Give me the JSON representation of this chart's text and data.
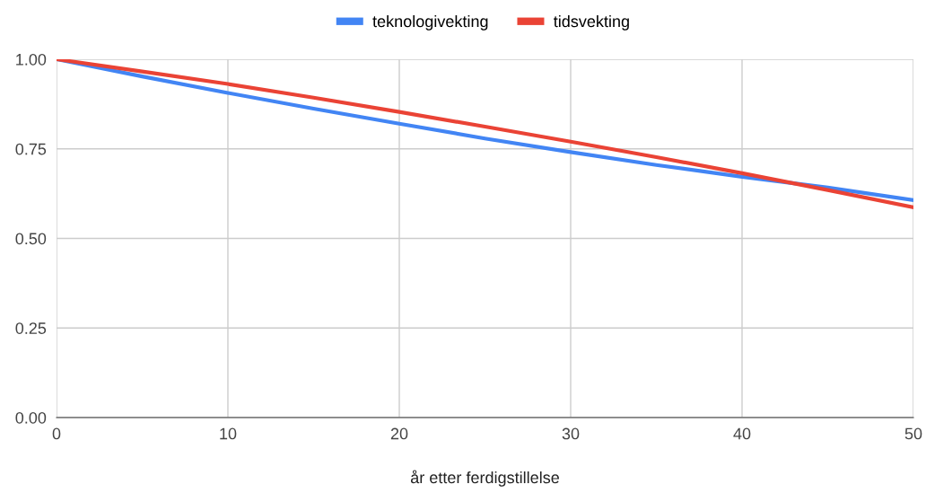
{
  "chart_data": {
    "type": "line",
    "xlabel": "år etter ferdigstillelse",
    "x": [
      0,
      5,
      10,
      15,
      20,
      25,
      30,
      35,
      40,
      45,
      50
    ],
    "series": [
      {
        "name": "teknologivekting",
        "color": "#4285f4",
        "values": [
          1.0,
          0.952,
          0.906,
          0.862,
          0.82,
          0.779,
          0.741,
          0.705,
          0.672,
          0.642,
          0.607
        ]
      },
      {
        "name": "tidsvekting",
        "color": "#ea4335",
        "values": [
          1.0,
          0.966,
          0.931,
          0.893,
          0.853,
          0.812,
          0.77,
          0.727,
          0.682,
          0.635,
          0.587
        ]
      }
    ],
    "xlim": [
      0,
      50
    ],
    "xticks": [
      0,
      10,
      20,
      30,
      40,
      50
    ],
    "ylim": [
      0,
      1
    ],
    "yticks": [
      {
        "value": 0,
        "label": "0.00"
      },
      {
        "value": 0.25,
        "label": "0.25"
      },
      {
        "value": 0.5,
        "label": "0.50"
      },
      {
        "value": 0.75,
        "label": "0.75"
      },
      {
        "value": 1,
        "label": "1.00"
      }
    ],
    "grid": true,
    "legend": "top",
    "marker": "none",
    "line_style": "solid"
  }
}
